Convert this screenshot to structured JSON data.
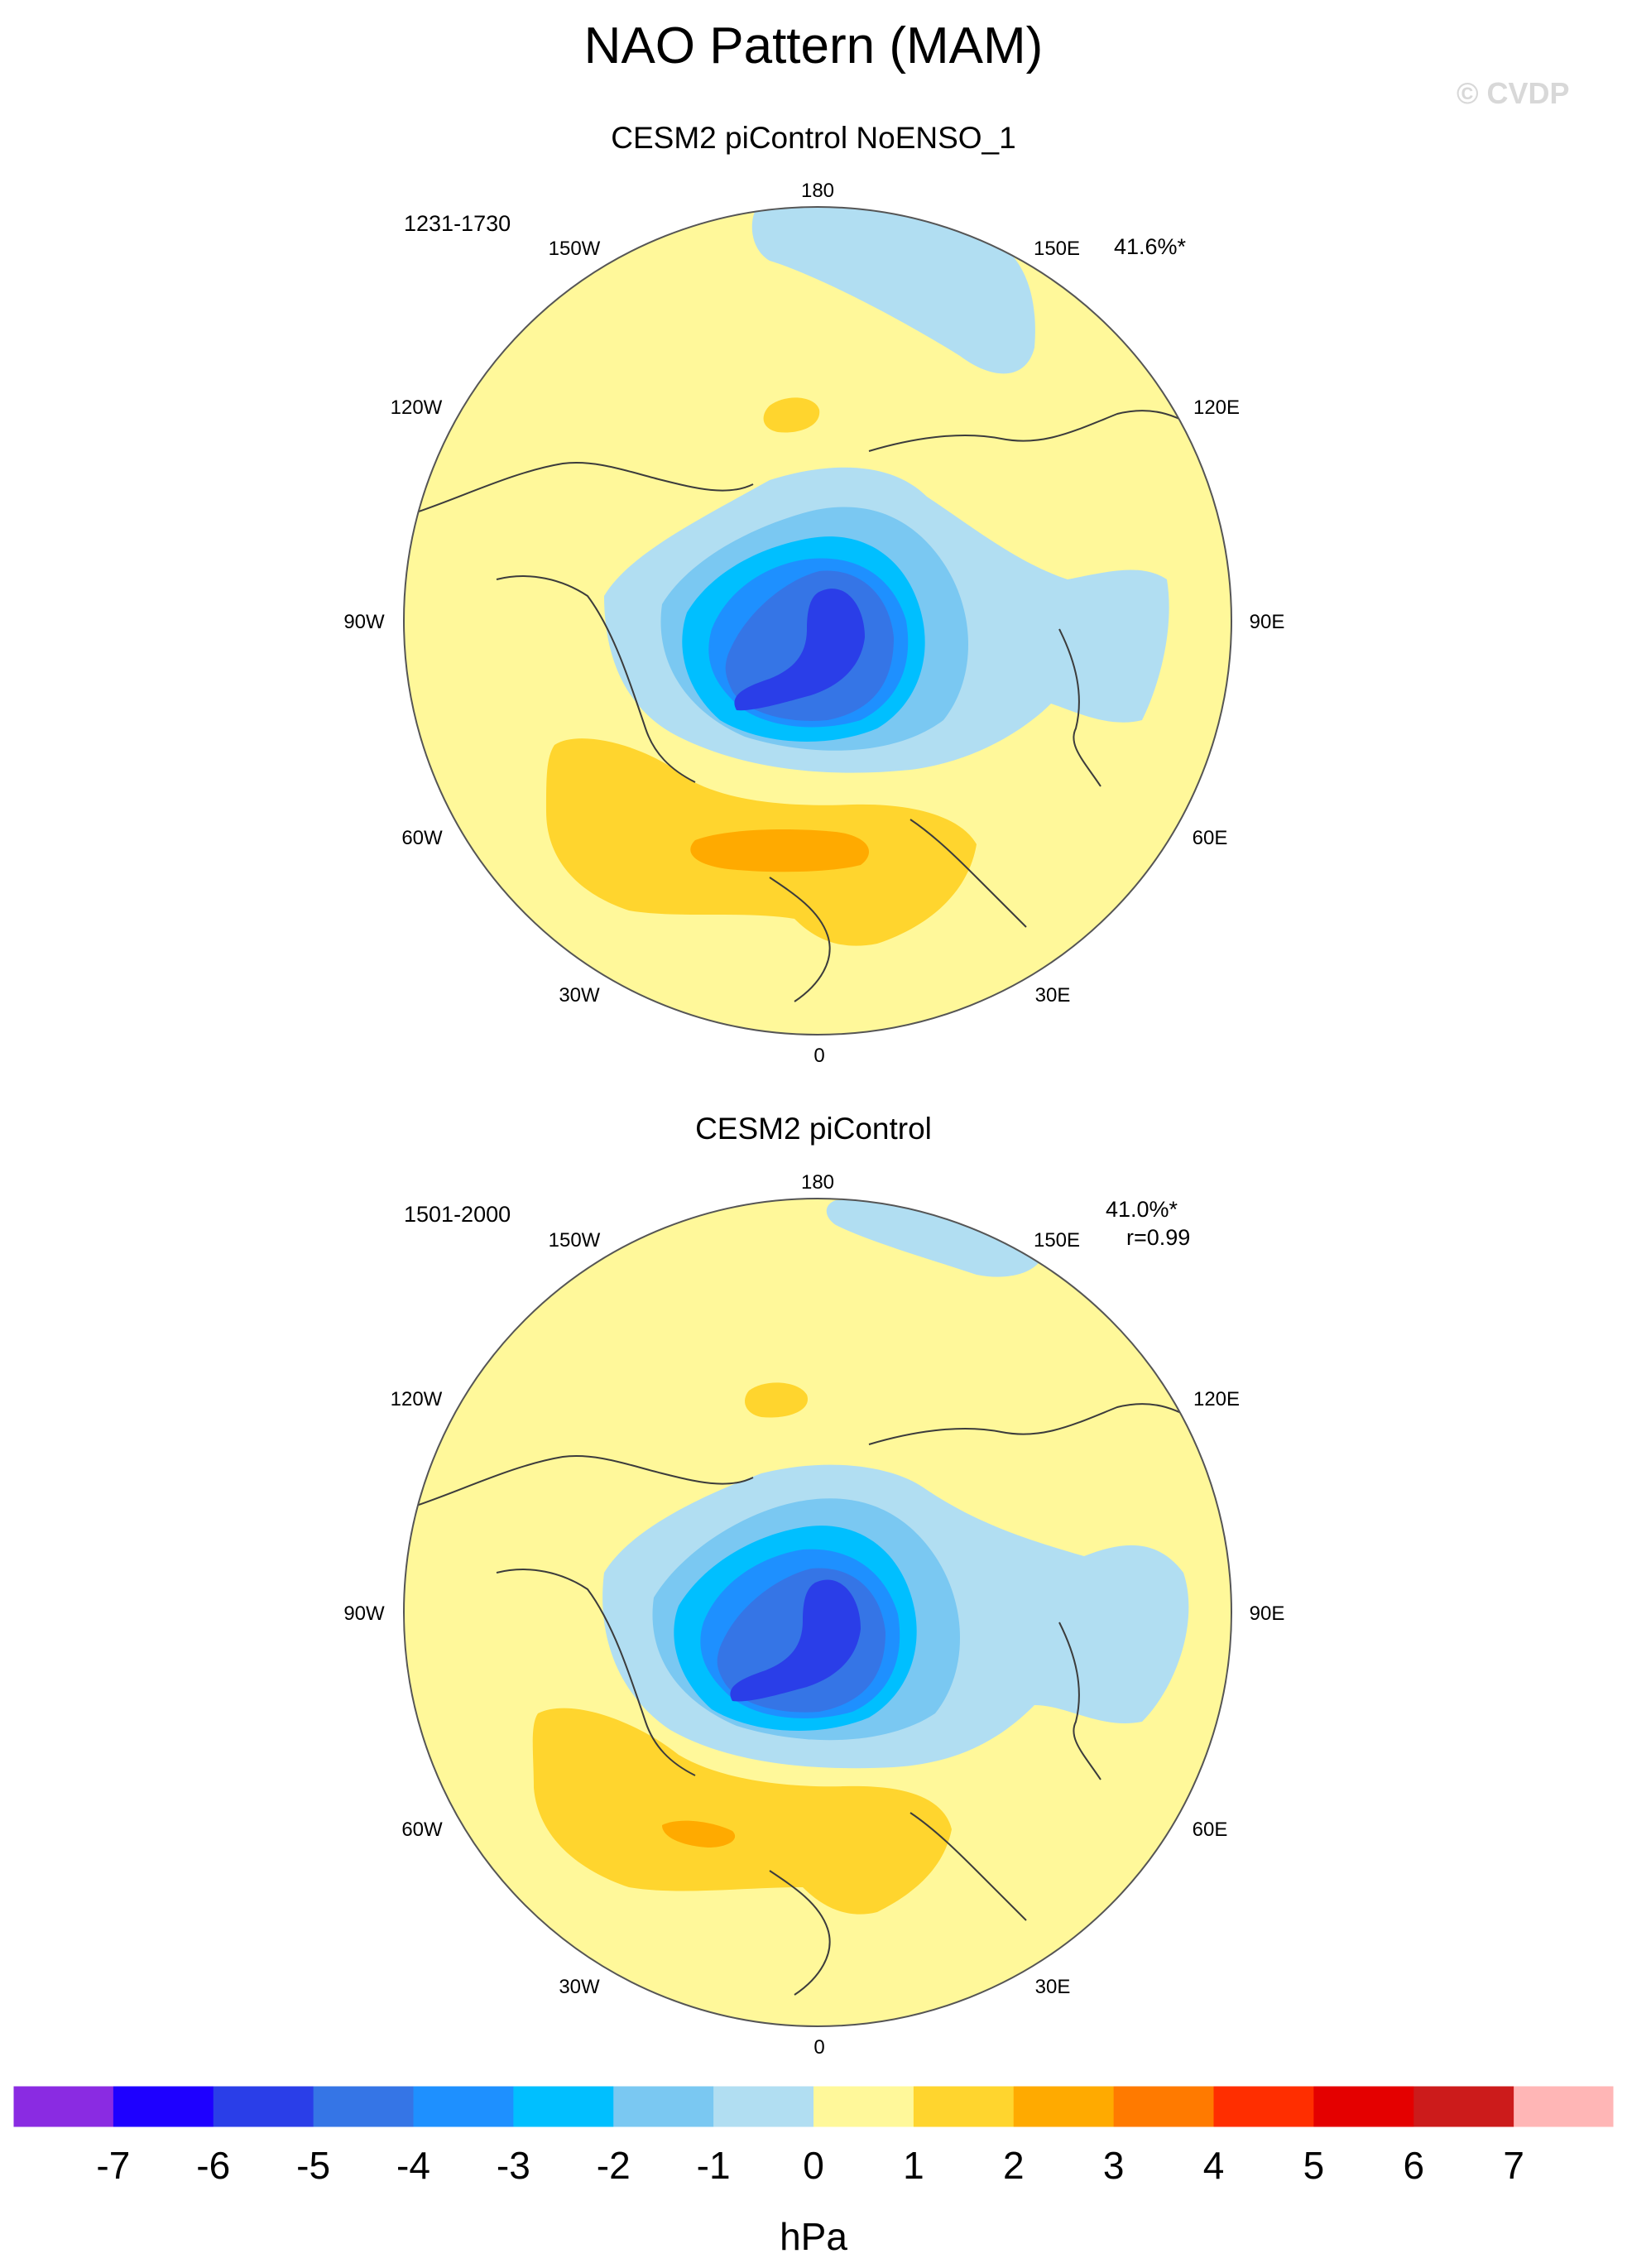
{
  "title": "NAO Pattern (MAM)",
  "watermark": "© CVDP",
  "units": "hPa",
  "lon_labels": [
    "180",
    "150E",
    "120E",
    "90E",
    "60E",
    "30E",
    "0",
    "30W",
    "60W",
    "90W",
    "120W",
    "150W"
  ],
  "panels": [
    {
      "title": "CESM2 piControl NoENSO_1",
      "years": "1231-1730",
      "variance": "41.6%*",
      "correlation": ""
    },
    {
      "title": "CESM2 piControl",
      "years": "1501-2000",
      "variance": "41.0%*",
      "correlation": "r=0.99"
    }
  ],
  "colorbar": {
    "levels": [
      "-7",
      "-6",
      "-5",
      "-4",
      "-3",
      "-2",
      "-1",
      "0",
      "1",
      "2",
      "3",
      "4",
      "5",
      "6",
      "7"
    ],
    "colors": [
      "#8a2be2",
      "#1e00ff",
      "#2a3ee8",
      "#3575e6",
      "#1e90ff",
      "#00bfff",
      "#7ac8f2",
      "#b1def2",
      "#fff89a",
      "#ffd52e",
      "#ffaa00",
      "#ff7a00",
      "#ff2e00",
      "#e40000",
      "#cc1b1b",
      "#ffb6b6"
    ]
  },
  "colors": {
    "land_outline": "#3c3c3c",
    "map_edge": "#555555"
  }
}
